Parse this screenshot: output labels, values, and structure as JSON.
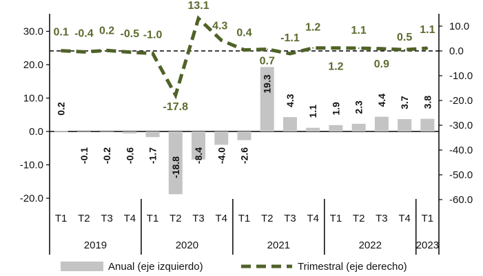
{
  "chart_data": {
    "type": "bar",
    "quarters": [
      "T1",
      "T2",
      "T3",
      "T4",
      "T1",
      "T2",
      "T3",
      "T4",
      "T1",
      "T2",
      "T3",
      "T4",
      "T1",
      "T2",
      "T3",
      "T4",
      "T1"
    ],
    "years": [
      {
        "label": "2019",
        "start": 0,
        "count": 4
      },
      {
        "label": "2020",
        "start": 4,
        "count": 4
      },
      {
        "label": "2021",
        "start": 8,
        "count": 4
      },
      {
        "label": "2022",
        "start": 12,
        "count": 4
      },
      {
        "label": "2023",
        "start": 16,
        "count": 1
      }
    ],
    "series": [
      {
        "name": "Anual (eje izquierdo)",
        "type": "bar",
        "axis": "left",
        "color": "#c4c4c4",
        "values": [
          0.2,
          -0.1,
          -0.2,
          -0.6,
          -1.7,
          -18.8,
          -8.4,
          -4.0,
          -2.6,
          19.3,
          4.3,
          1.1,
          1.9,
          2.3,
          4.4,
          3.7,
          3.8
        ],
        "labels": [
          "0.2",
          "-0.1",
          "-0.2",
          "-0.6",
          "-1.7",
          "-18.8",
          "-8.4",
          "-4.0",
          "-2.6",
          "19.3",
          "4.3",
          "1.1",
          "1.9",
          "2.3",
          "4.4",
          "3.7",
          "3.8"
        ]
      },
      {
        "name": "Trimestral (eje derecho)",
        "type": "line",
        "axis": "right",
        "color": "#4f6228",
        "style": "dashed",
        "values": [
          0.1,
          -0.4,
          0.2,
          -0.5,
          -1.0,
          -17.8,
          13.1,
          4.3,
          0.4,
          0.7,
          -1.1,
          1.2,
          1.2,
          1.1,
          0.9,
          0.5,
          1.1
        ],
        "labels": [
          "0.1",
          "-0.4",
          "0.2",
          "-0.5",
          "-1.0",
          "-17.8",
          "13.1",
          "4.3",
          "0.4",
          "0.7",
          "-1.1",
          "1.2",
          "1.2",
          "1.1",
          "0.9",
          "0.5",
          "1.1"
        ]
      }
    ],
    "y_left": {
      "min": -20,
      "max": 30,
      "ticks": [
        "30.0",
        "20.0",
        "10.0",
        "0.0",
        "-10.0",
        "-20.0"
      ],
      "tick_values": [
        30,
        20,
        10,
        0,
        -10,
        -20
      ]
    },
    "y_right": {
      "min": -60,
      "max": 10,
      "ticks": [
        "10.0",
        "0.0",
        "-10.0",
        "-20.0",
        "-30.0",
        "-40.0",
        "-50.0",
        "-60.0"
      ],
      "tick_values": [
        10,
        0,
        -10,
        -20,
        -30,
        -40,
        -50,
        -60
      ]
    },
    "legend": {
      "position": "bottom",
      "items": [
        "Anual (eje izquierdo)",
        "Trimestral (eje derecho)"
      ]
    },
    "grid": false
  }
}
